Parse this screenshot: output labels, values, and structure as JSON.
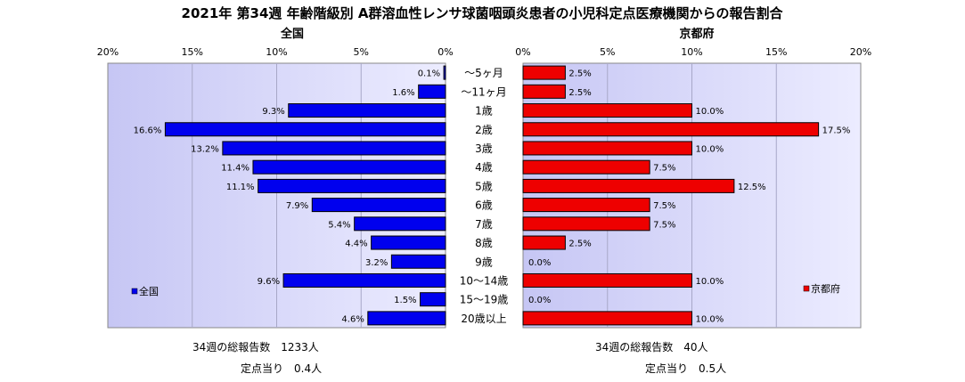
{
  "title": "2021年 第34週 年齢階級別 A群溶血性レンサ球菌咽頭炎患者の小児科定点医療機関からの報告割合",
  "chart_data": [
    {
      "type": "bar",
      "orientation": "horizontal",
      "subtitle": "全国",
      "direction": "right-to-left",
      "xlim": [
        0,
        20
      ],
      "ticks": [
        "20%",
        "15%",
        "10%",
        "5%",
        "0%"
      ],
      "color": "#0000ee",
      "series": [
        {
          "name": "全国",
          "values": [
            0.1,
            1.6,
            9.3,
            16.6,
            13.2,
            11.4,
            11.1,
            7.9,
            5.4,
            4.4,
            3.2,
            9.6,
            1.5,
            4.6
          ]
        }
      ],
      "value_labels": [
        "0.1%",
        "1.6%",
        "9.3%",
        "16.6%",
        "13.2%",
        "11.4%",
        "11.1%",
        "7.9%",
        "5.4%",
        "4.4%",
        "3.2%",
        "9.6%",
        "1.5%",
        "4.6%"
      ],
      "legend": "bottom-left"
    },
    {
      "type": "bar",
      "orientation": "horizontal",
      "subtitle": "京都府",
      "direction": "left-to-right",
      "xlim": [
        0,
        20
      ],
      "ticks": [
        "0%",
        "5%",
        "10%",
        "15%",
        "20%"
      ],
      "color": "#ee0000",
      "series": [
        {
          "name": "京都府",
          "values": [
            2.5,
            2.5,
            10.0,
            17.5,
            10.0,
            7.5,
            12.5,
            7.5,
            7.5,
            2.5,
            0.0,
            10.0,
            0.0,
            10.0
          ]
        }
      ],
      "value_labels": [
        "2.5%",
        "2.5%",
        "10.0%",
        "17.5%",
        "10.0%",
        "7.5%",
        "12.5%",
        "7.5%",
        "7.5%",
        "2.5%",
        "0.0%",
        "10.0%",
        "0.0%",
        "10.0%"
      ],
      "legend": "bottom-right"
    }
  ],
  "categories": [
    "～5ヶ月",
    "～11ヶ月",
    "1歳",
    "2歳",
    "3歳",
    "4歳",
    "5歳",
    "6歳",
    "7歳",
    "8歳",
    "9歳",
    "10～14歳",
    "15～19歳",
    "20歳以上"
  ],
  "footer": {
    "national_total": "34週の総報告数　1233人",
    "national_per_site": "定点当り　0.4人",
    "kyoto_total": "34週の総報告数　40人",
    "kyoto_per_site": "定点当り　0.5人"
  }
}
